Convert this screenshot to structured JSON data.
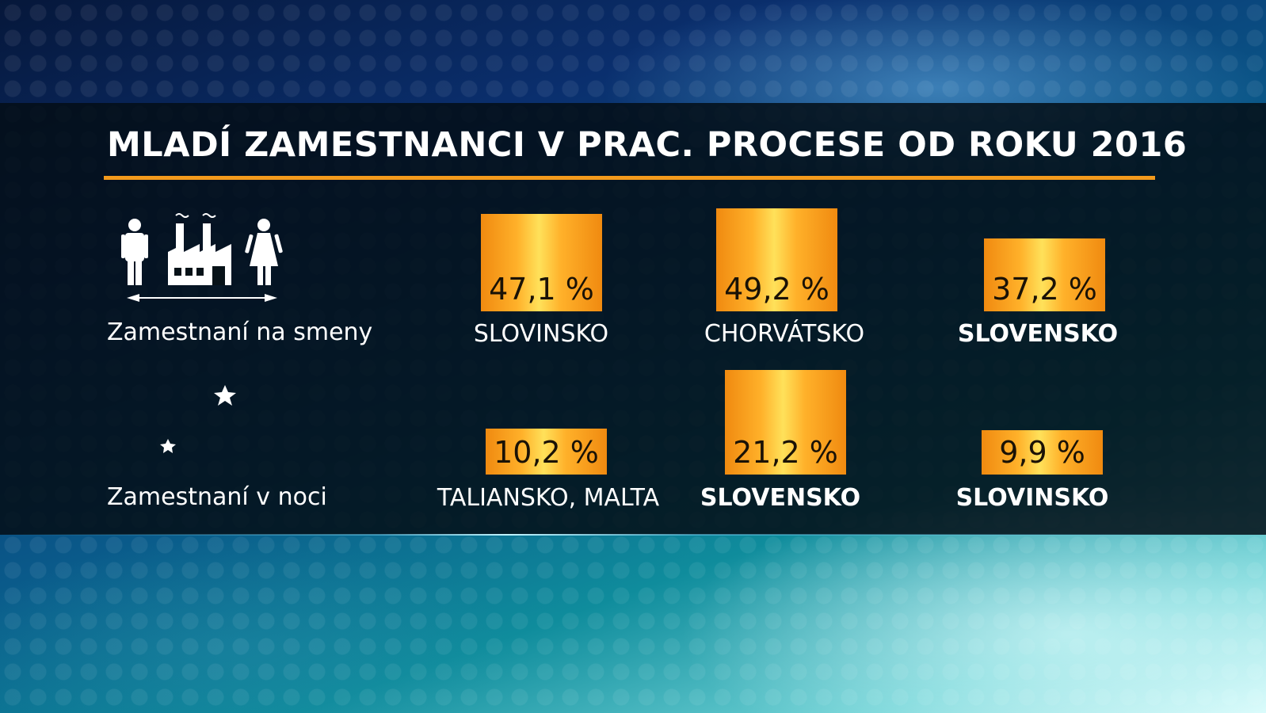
{
  "title": "MLADÍ ZAMESTNANCI V PRAC. PROCESE OD ROKU 2016",
  "colors": {
    "accent": "#f39a1c",
    "bar_gradient_edge": "#f08a10",
    "bar_gradient_center": "#ffe15a"
  },
  "icons": {
    "row1": [
      "man-icon",
      "factory-icon",
      "woman-icon",
      "double-arrow-icon"
    ],
    "row2": [
      "moon-icon",
      "star-icon"
    ]
  },
  "chart_data": {
    "type": "bar",
    "value_unit": "%",
    "rows": [
      {
        "label": "Zamestnaní na smeny",
        "items": [
          {
            "country": "SLOVINSKO",
            "value": 47.1,
            "value_label": "47,1 %",
            "highlight": false
          },
          {
            "country": "CHORVÁTSKO",
            "value": 49.2,
            "value_label": "49,2 %",
            "highlight": false
          },
          {
            "country": "SLOVENSKO",
            "value": 37.2,
            "value_label": "37,2 %",
            "highlight": true
          }
        ]
      },
      {
        "label": "Zamestnaní v noci",
        "items": [
          {
            "country": "TALIANSKO, MALTA",
            "value": 10.2,
            "value_label": "10,2 %",
            "highlight": false
          },
          {
            "country": "SLOVENSKO",
            "value": 21.2,
            "value_label": "21,2 %",
            "highlight": true
          },
          {
            "country": "SLOVINSKO",
            "value": 9.9,
            "value_label": "9,9 %",
            "highlight": true
          }
        ]
      }
    ]
  }
}
